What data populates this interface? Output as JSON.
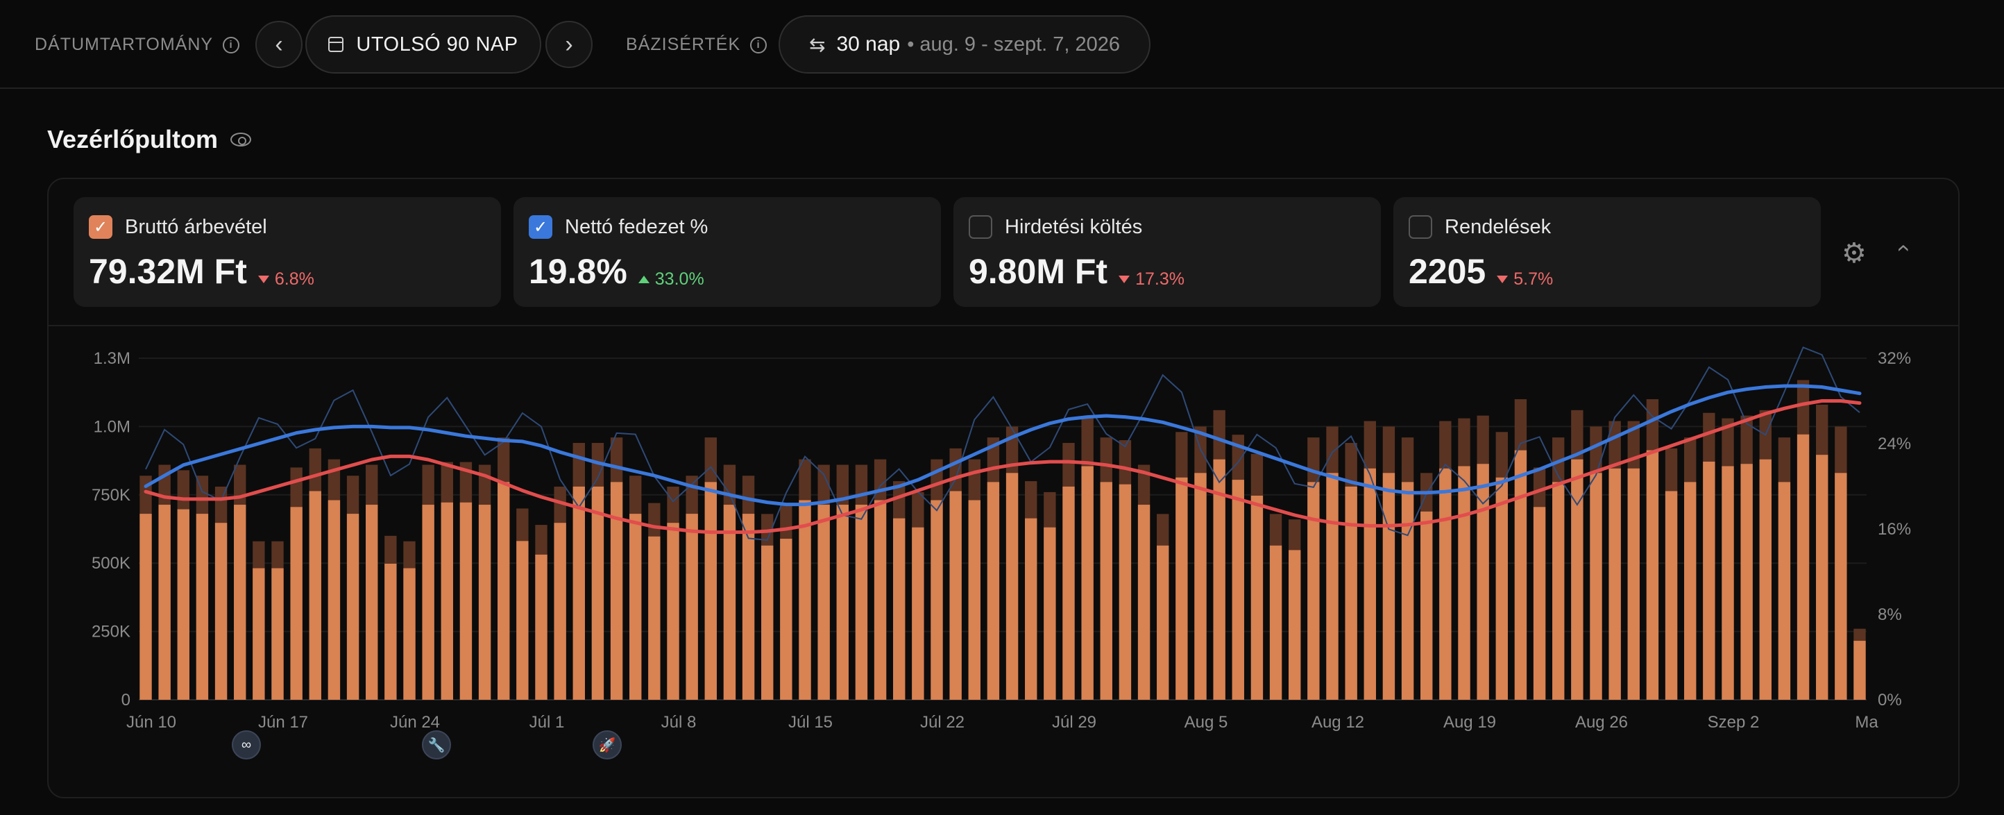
{
  "topbar": {
    "date_range_label": "DÁTUMTARTOMÁNY",
    "range": "UTOLSÓ 90 NAP",
    "baseline_label": "BÁZISÉRTÉK",
    "baseline_value": "30 nap",
    "baseline_dates": "• aug. 9 - szept. 7, 2026"
  },
  "dashboard": {
    "title": "Vezérlőpultom"
  },
  "kpis": [
    {
      "label": "Bruttó árbevétel",
      "value": "79.32M Ft",
      "delta": "6.8%",
      "direction": "down",
      "checked": true,
      "color": "#e0835a"
    },
    {
      "label": "Nettó fedezet %",
      "value": "19.8%",
      "delta": "33.0%",
      "direction": "up",
      "checked": true,
      "color": "#3a78dc"
    },
    {
      "label": "Hirdetési költés",
      "value": "9.80M Ft",
      "delta": "17.3%",
      "direction": "down",
      "checked": false
    },
    {
      "label": "Rendelések",
      "value": "2205",
      "delta": "5.7%",
      "direction": "down",
      "checked": false
    }
  ],
  "markers": [
    {
      "icon": "meta-icon",
      "glyph": "∞"
    },
    {
      "icon": "wrench-icon",
      "glyph": "🔧"
    },
    {
      "icon": "rocket-icon",
      "glyph": "🚀"
    }
  ],
  "chart_data": {
    "type": "bar",
    "left_axis": {
      "ticks": [
        "0",
        "250K",
        "500K",
        "750K",
        "1.0M",
        "1.3M"
      ],
      "max": 1250000
    },
    "right_axis": {
      "ticks": [
        "0%",
        "8%",
        "16%",
        "24%",
        "32%"
      ],
      "max": 32
    },
    "x_ticks": [
      "Jún 10",
      "Jún 17",
      "Jún 24",
      "Júl 1",
      "Júl 8",
      "Júl 15",
      "Júl 22",
      "Júl 29",
      "Aug 5",
      "Aug 12",
      "Aug 19",
      "Aug 26",
      "Szep 2",
      "Ma"
    ],
    "series": [
      {
        "name": "Bruttó árbevétel",
        "color": "#d98252",
        "values": [
          820000,
          860000,
          840000,
          820000,
          780000,
          860000,
          580000,
          580000,
          850000,
          920000,
          880000,
          820000,
          860000,
          600000,
          580000,
          860000,
          870000,
          870000,
          860000,
          960000,
          700000,
          640000,
          780000,
          940000,
          940000,
          960000,
          820000,
          720000,
          780000,
          820000,
          960000,
          860000,
          820000,
          680000,
          710000,
          880000,
          860000,
          860000,
          860000,
          880000,
          800000,
          760000,
          880000,
          920000,
          880000,
          960000,
          1000000,
          800000,
          760000,
          940000,
          1030000,
          960000,
          950000,
          860000,
          680000,
          980000,
          1000000,
          1060000,
          970000,
          900000,
          680000,
          660000,
          960000,
          1000000,
          940000,
          1020000,
          1000000,
          960000,
          830000,
          1020000,
          1030000,
          1040000,
          980000,
          1100000,
          850000,
          960000,
          1060000,
          1000000,
          1020000,
          1020000,
          1100000,
          920000,
          960000,
          1050000,
          1030000,
          1040000,
          1060000,
          960000,
          1170000,
          1080000,
          1000000,
          260000
        ]
      },
      {
        "name": "Nettó fedezet %",
        "color": "#3a78dc",
        "values": [
          20,
          21,
          22,
          22.5,
          23,
          23.5,
          24,
          24.5,
          25,
          25.3,
          25.5,
          25.6,
          25.6,
          25.5,
          25.5,
          25.3,
          25,
          24.7,
          24.5,
          24.3,
          24.2,
          23.8,
          23.2,
          22.7,
          22.2,
          21.8,
          21.4,
          21,
          20.5,
          20,
          19.6,
          19.2,
          18.8,
          18.5,
          18.3,
          18.3,
          18.5,
          18.8,
          19.2,
          19.6,
          20,
          20.6,
          21.4,
          22.2,
          23,
          23.8,
          24.6,
          25.3,
          25.9,
          26.3,
          26.5,
          26.6,
          26.5,
          26.3,
          26,
          25.5,
          25,
          24.4,
          23.8,
          23.2,
          22.6,
          22,
          21.4,
          20.9,
          20.4,
          20,
          19.6,
          19.4,
          19.4,
          19.5,
          19.7,
          20,
          20.4,
          21,
          21.6,
          22.3,
          23,
          23.8,
          24.6,
          25.4,
          26.2,
          27,
          27.7,
          28.3,
          28.8,
          29.1,
          29.3,
          29.4,
          29.4,
          29.3,
          29,
          28.7
        ]
      },
      {
        "name": "Nettó fedezet % (bázis)",
        "color": "#e24d4d",
        "values": [
          19.5,
          19,
          18.8,
          18.8,
          18.8,
          19,
          19.5,
          20,
          20.5,
          21,
          21.5,
          22,
          22.5,
          22.8,
          22.8,
          22.5,
          22,
          21.5,
          21,
          20.3,
          19.6,
          19,
          18.5,
          18,
          17.5,
          17,
          16.6,
          16.2,
          16,
          15.8,
          15.7,
          15.7,
          15.7,
          15.8,
          16,
          16.3,
          16.8,
          17.3,
          17.8,
          18.4,
          19,
          19.6,
          20.2,
          20.8,
          21.3,
          21.7,
          22,
          22.2,
          22.3,
          22.3,
          22.2,
          22,
          21.7,
          21.3,
          20.8,
          20.3,
          19.8,
          19.3,
          18.8,
          18.3,
          17.8,
          17.3,
          16.9,
          16.6,
          16.4,
          16.3,
          16.3,
          16.4,
          16.6,
          16.9,
          17.3,
          17.8,
          18.4,
          19,
          19.6,
          20.2,
          20.8,
          21.4,
          22,
          22.6,
          23.2,
          23.8,
          24.4,
          25,
          25.6,
          26.2,
          26.8,
          27.3,
          27.7,
          28,
          28,
          27.8
        ]
      }
    ]
  }
}
